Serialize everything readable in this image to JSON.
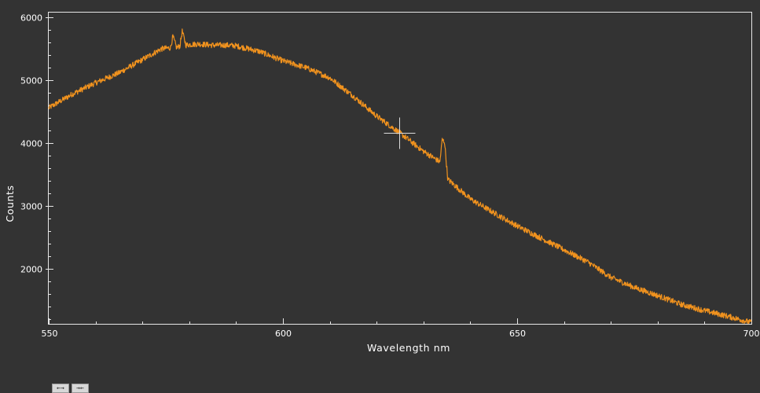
{
  "chart_data": {
    "type": "line",
    "title": "",
    "xlabel": "Wavelength nm",
    "ylabel": "Counts",
    "xlim": [
      550,
      700
    ],
    "ylim": [
      1120,
      6080
    ],
    "x_ticks": [
      550,
      600,
      650,
      700
    ],
    "y_ticks": [
      2000,
      3000,
      4000,
      5000,
      6000
    ],
    "x_minor_step": 10,
    "y_minor_step": 200,
    "grid": false,
    "line_color": "#f0921e",
    "series": [
      {
        "x": [
          550,
          555,
          560,
          565,
          570,
          574,
          576,
          576.5,
          577.3,
          578,
          578.5,
          579.3,
          580,
          582,
          585,
          588,
          590,
          595,
          600,
          605,
          610,
          615,
          620,
          625,
          630,
          633.5,
          634,
          634.5,
          635.2,
          636,
          640,
          645,
          650,
          655,
          660,
          665,
          670,
          675,
          680,
          685,
          690,
          695,
          700
        ],
        "y": [
          4560,
          4780,
          4960,
          5120,
          5330,
          5500,
          5520,
          5700,
          5520,
          5550,
          5780,
          5560,
          5570,
          5580,
          5560,
          5560,
          5550,
          5460,
          5310,
          5200,
          5040,
          4750,
          4430,
          4160,
          3870,
          3700,
          4050,
          4020,
          3420,
          3370,
          3110,
          2890,
          2680,
          2490,
          2300,
          2110,
          1860,
          1700,
          1570,
          1430,
          1330,
          1240,
          1140
        ]
      }
    ],
    "cursor": {
      "x": 624.8,
      "y": 4160
    }
  },
  "toolbar": {
    "zoom_out_label": "←→",
    "zoom_in_label": "→←"
  }
}
